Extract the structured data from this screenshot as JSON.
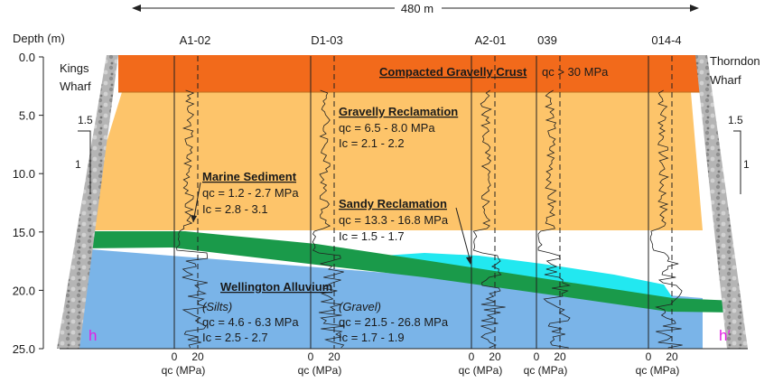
{
  "scale_label": "480 m",
  "depth_title": "Depth (m)",
  "depth_ticks": [
    "0.0",
    "5.0",
    "10.0",
    "15.0",
    "20.0",
    "25.0"
  ],
  "wharf_left": [
    "Kings",
    "Wharf"
  ],
  "wharf_right": [
    "Thorndon",
    "Wharf"
  ],
  "slope_left": {
    "run": "1.5",
    "rise": "1"
  },
  "slope_right": {
    "run": "1.5",
    "rise": "1"
  },
  "cpt_ids": [
    "A1-02",
    "D1-03",
    "A2-01",
    "039",
    "014-4"
  ],
  "cpt_axis": {
    "zero": "0",
    "twenty": "20",
    "unit": "qᴄ (MPa)"
  },
  "layers": {
    "crust": {
      "title": "Compacted Gravelly Crust",
      "qc": "qᴄ > 30 MPa",
      "color": "#f26a1b"
    },
    "gravelly": {
      "title": "Gravelly Reclamation",
      "qc": "qᴄ = 6.5 - 8.0 MPa",
      "ic": "Iᴄ = 2.1 - 2.2",
      "color": "#fdc46a"
    },
    "marine": {
      "title": "Marine Sediment",
      "qc": "qᴄ = 1.2 - 2.7 MPa",
      "ic": "Iᴄ = 2.8 - 3.1",
      "color": "#1a9a4a"
    },
    "sandy": {
      "title": "Sandy Reclamation",
      "qc": "qᴄ = 13.3 - 16.8 MPa",
      "ic": "Iᴄ = 1.5 - 1.7",
      "color": "#22e8f0"
    },
    "alluvium": {
      "title": "Wellington Alluvium",
      "color": "#7ab4e8",
      "silts": {
        "name": "(Silts)",
        "qc": "qᴄ = 4.6 - 6.3 MPa",
        "ic": "Iᴄ = 2.5 - 2.7"
      },
      "gravel": {
        "name": "(Gravel)",
        "qc": "qᴄ = 21.5 - 26.8 MPa",
        "ic": "Iᴄ = 1.7 - 1.9"
      }
    }
  },
  "corner_left": "h",
  "corner_right": "h′"
}
